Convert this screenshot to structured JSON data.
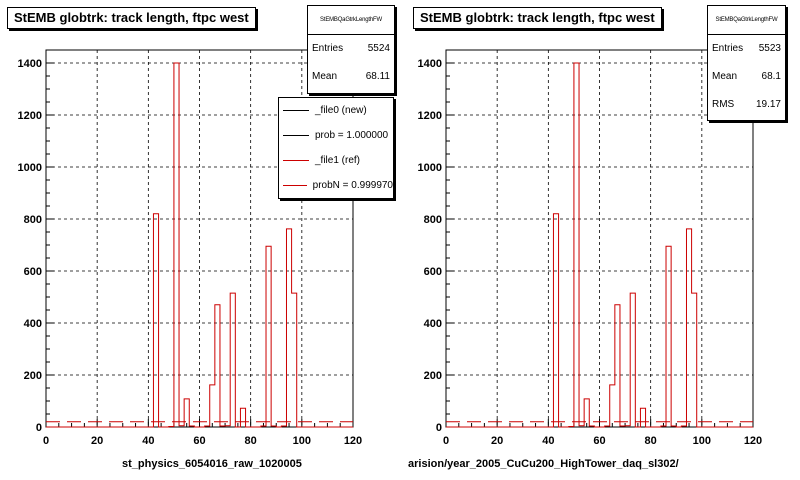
{
  "chart_data": [
    {
      "type": "bar",
      "title": "StEMB globtrk: track length, ftpc west",
      "xlabel": "st_physics_6054016_raw_1020005",
      "ylabel": "",
      "xlim": [
        0,
        120
      ],
      "ylim": [
        0,
        1450
      ],
      "xticks": [
        0,
        20,
        40,
        60,
        80,
        100,
        120
      ],
      "yticks": [
        0,
        200,
        400,
        600,
        800,
        1000,
        1200,
        1400
      ],
      "grid": true,
      "bin_width": 2,
      "stats": {
        "name": "StEMBQaGtrkLengthFW",
        "entries": "5524",
        "mean": "68.11",
        "rms": ""
      },
      "legend": [
        {
          "label": "_file0 (new)",
          "color": "#000000"
        },
        {
          "label": "prob = 1.000000",
          "color": "#000000"
        },
        {
          "label": "_file1 (ref)",
          "color": "#cc0000"
        },
        {
          "label": "probN = 0.999970",
          "color": "#cc0000"
        }
      ],
      "series": [
        {
          "color": "#cc0000",
          "bins": [
            [
              42,
              820
            ],
            [
              48,
              2
            ],
            [
              50,
              1400
            ],
            [
              52,
              5
            ],
            [
              54,
              108
            ],
            [
              56,
              4
            ],
            [
              62,
              4
            ],
            [
              64,
              162
            ],
            [
              66,
              470
            ],
            [
              68,
              4
            ],
            [
              70,
              5
            ],
            [
              72,
              515
            ],
            [
              76,
              72
            ],
            [
              84,
              4
            ],
            [
              86,
              695
            ],
            [
              88,
              4
            ],
            [
              92,
              4
            ],
            [
              94,
              762
            ],
            [
              96,
              515
            ]
          ]
        }
      ]
    },
    {
      "type": "bar",
      "title": "StEMB globtrk: track length, ftpc west",
      "xlabel": "arision/year_2005_CuCu200_HighTower_daq_sl302/",
      "ylabel": "",
      "xlim": [
        0,
        120
      ],
      "ylim": [
        0,
        1450
      ],
      "xticks": [
        0,
        20,
        40,
        60,
        80,
        100,
        120
      ],
      "yticks": [
        0,
        200,
        400,
        600,
        800,
        1000,
        1200,
        1400
      ],
      "grid": true,
      "bin_width": 2,
      "stats": {
        "name": "StEMBQaGtrkLengthFW",
        "entries": "5523",
        "mean": "68.1",
        "rms": "19.17"
      },
      "legend": [],
      "series": [
        {
          "color": "#cc0000",
          "bins": [
            [
              42,
              820
            ],
            [
              48,
              2
            ],
            [
              50,
              1400
            ],
            [
              52,
              5
            ],
            [
              54,
              108
            ],
            [
              56,
              4
            ],
            [
              62,
              4
            ],
            [
              64,
              162
            ],
            [
              66,
              470
            ],
            [
              68,
              4
            ],
            [
              70,
              5
            ],
            [
              72,
              515
            ],
            [
              76,
              72
            ],
            [
              84,
              4
            ],
            [
              86,
              695
            ],
            [
              88,
              4
            ],
            [
              92,
              4
            ],
            [
              94,
              762
            ],
            [
              96,
              515
            ]
          ]
        }
      ]
    }
  ],
  "labels": {
    "entries": "Entries",
    "mean": "Mean",
    "rms": "RMS"
  }
}
